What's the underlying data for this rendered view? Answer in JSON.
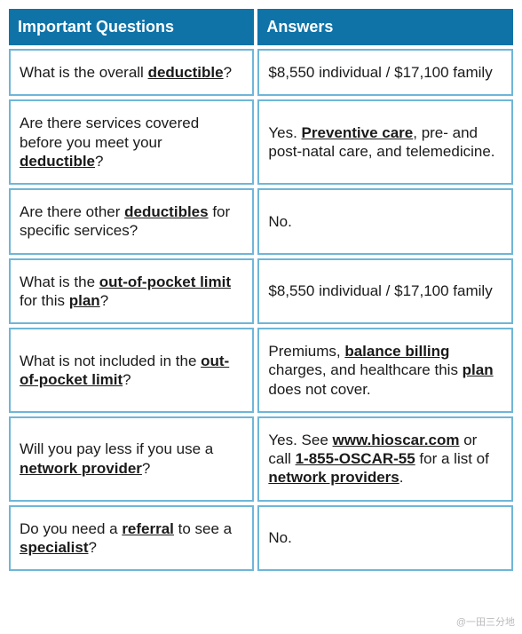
{
  "table": {
    "header_bg": "#0f73a8",
    "header_fg": "#ffffff",
    "cell_border": "#6fb6d8",
    "cell_bg": "#ffffff",
    "cell_fg": "#1a1a1a",
    "columns": [
      "Important Questions",
      "Answers"
    ],
    "rows": [
      {
        "q": [
          {
            "t": "What is the overall "
          },
          {
            "t": "deductible",
            "term": true
          },
          {
            "t": "?"
          }
        ],
        "a": [
          {
            "t": "$8,550 individual / $17,100 family"
          }
        ]
      },
      {
        "q": [
          {
            "t": "Are there services covered before you meet your "
          },
          {
            "t": "deductible",
            "term": true
          },
          {
            "t": "?"
          }
        ],
        "a": [
          {
            "t": "Yes. "
          },
          {
            "t": "Preventive care",
            "term": true
          },
          {
            "t": ", pre- and post-natal care, and telemedicine."
          }
        ]
      },
      {
        "q": [
          {
            "t": "Are there other "
          },
          {
            "t": "deductibles",
            "term": true
          },
          {
            "t": " for specific services?"
          }
        ],
        "a": [
          {
            "t": "No."
          }
        ]
      },
      {
        "q": [
          {
            "t": "What is the "
          },
          {
            "t": "out-of-pocket limit",
            "term": true
          },
          {
            "t": " for this "
          },
          {
            "t": "plan",
            "term": true
          },
          {
            "t": "?"
          }
        ],
        "a": [
          {
            "t": "$8,550 individual / $17,100 family"
          }
        ]
      },
      {
        "q": [
          {
            "t": "What is not included in the "
          },
          {
            "t": "out-of-pocket limit",
            "term": true
          },
          {
            "t": "?"
          }
        ],
        "a": [
          {
            "t": "Premiums, "
          },
          {
            "t": "balance billing",
            "term": true
          },
          {
            "t": " charges, and healthcare this "
          },
          {
            "t": "plan",
            "term": true
          },
          {
            "t": " does not cover."
          }
        ]
      },
      {
        "q": [
          {
            "t": "Will you pay less if you use a "
          },
          {
            "t": "network provider",
            "term": true
          },
          {
            "t": "?"
          }
        ],
        "a": [
          {
            "t": "Yes. See "
          },
          {
            "t": "www.hioscar.com",
            "term": true
          },
          {
            "t": " or call "
          },
          {
            "t": "1-855-OSCAR-55",
            "term": true
          },
          {
            "t": " for a list of "
          },
          {
            "t": "network providers",
            "term": true
          },
          {
            "t": "."
          }
        ]
      },
      {
        "q": [
          {
            "t": "Do you need a "
          },
          {
            "t": "referral",
            "term": true
          },
          {
            "t": " to see a "
          },
          {
            "t": "specialist",
            "term": true
          },
          {
            "t": "?"
          }
        ],
        "a": [
          {
            "t": "No."
          }
        ]
      }
    ]
  },
  "watermark": "@一田三分地"
}
